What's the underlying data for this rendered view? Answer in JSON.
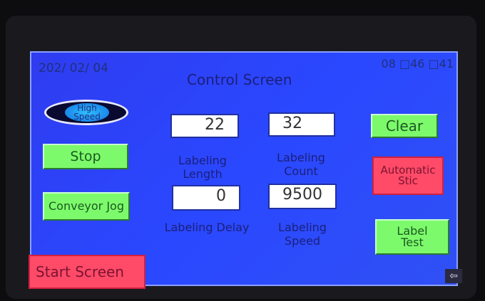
{
  "header": {
    "date": "202/ 02/ 04",
    "time": "08 □46 □41",
    "title": "Control Screen"
  },
  "buttons": {
    "high_speed": "High Speed",
    "stop": "Stop",
    "conveyor_jog": "Conveyor Jog",
    "start_screen": "Start Screen",
    "clear": "Clear",
    "automatic_stick": "Automatic Stic",
    "label_test": "Label Test"
  },
  "fields": [
    {
      "label": "Labeling Length",
      "value": "22"
    },
    {
      "label": "Labeling Count",
      "value": "32"
    },
    {
      "label": "Labeling Delay",
      "value": "0"
    },
    {
      "label": "Labeling Speed",
      "value": "9500"
    }
  ],
  "icons": {
    "corner": "back-arrow-icon"
  },
  "colors": {
    "screen": "#2a48ff",
    "green_button": "#7dfa6b",
    "red_button": "#ff4a68"
  }
}
